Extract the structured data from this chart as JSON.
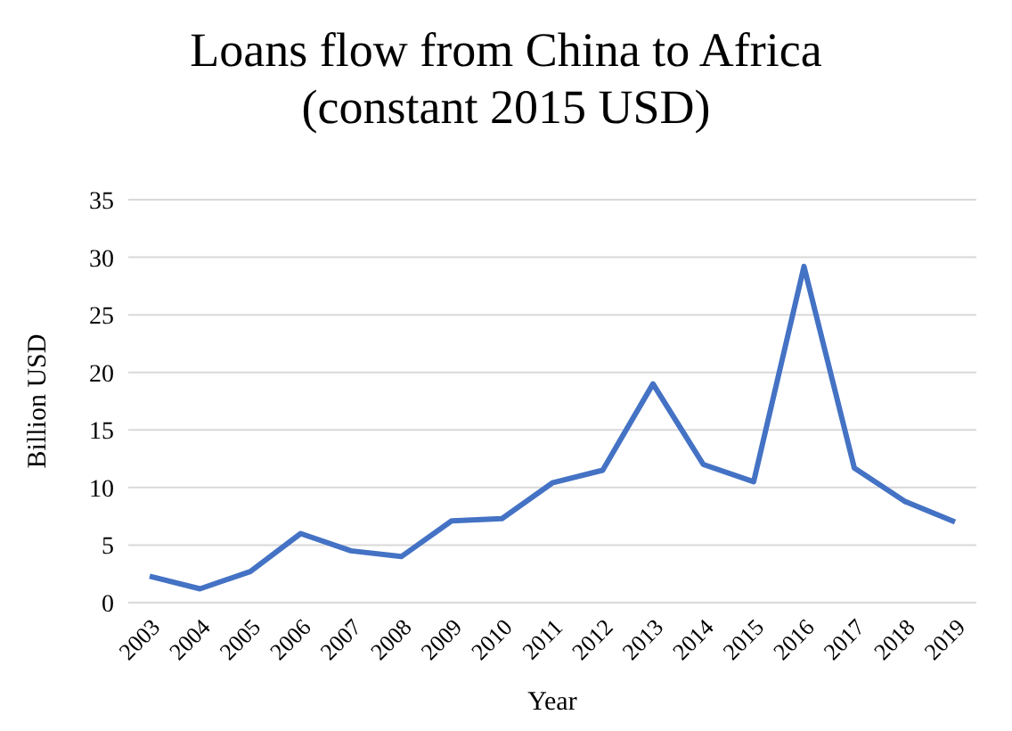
{
  "chart_data": {
    "type": "line",
    "title": "Loans flow from China to Africa\n(constant 2015 USD)",
    "xlabel": "Year",
    "ylabel": "Billion USD",
    "categories": [
      "2003",
      "2004",
      "2005",
      "2006",
      "2007",
      "2008",
      "2009",
      "2010",
      "2011",
      "2012",
      "2013",
      "2014",
      "2015",
      "2016",
      "2017",
      "2018",
      "2019"
    ],
    "series": [
      {
        "color": "#4472c4",
        "values": [
          2.3,
          1.2,
          2.7,
          6.0,
          4.5,
          4.0,
          7.1,
          7.3,
          10.4,
          11.5,
          19.0,
          12.0,
          10.5,
          29.2,
          11.7,
          8.8,
          7.0
        ]
      }
    ],
    "ylim": [
      0,
      35
    ],
    "yticks": [
      0,
      5,
      10,
      15,
      20,
      25,
      30,
      35
    ],
    "grid": "y",
    "legend": false,
    "marker": "none",
    "line_style": "solid"
  }
}
